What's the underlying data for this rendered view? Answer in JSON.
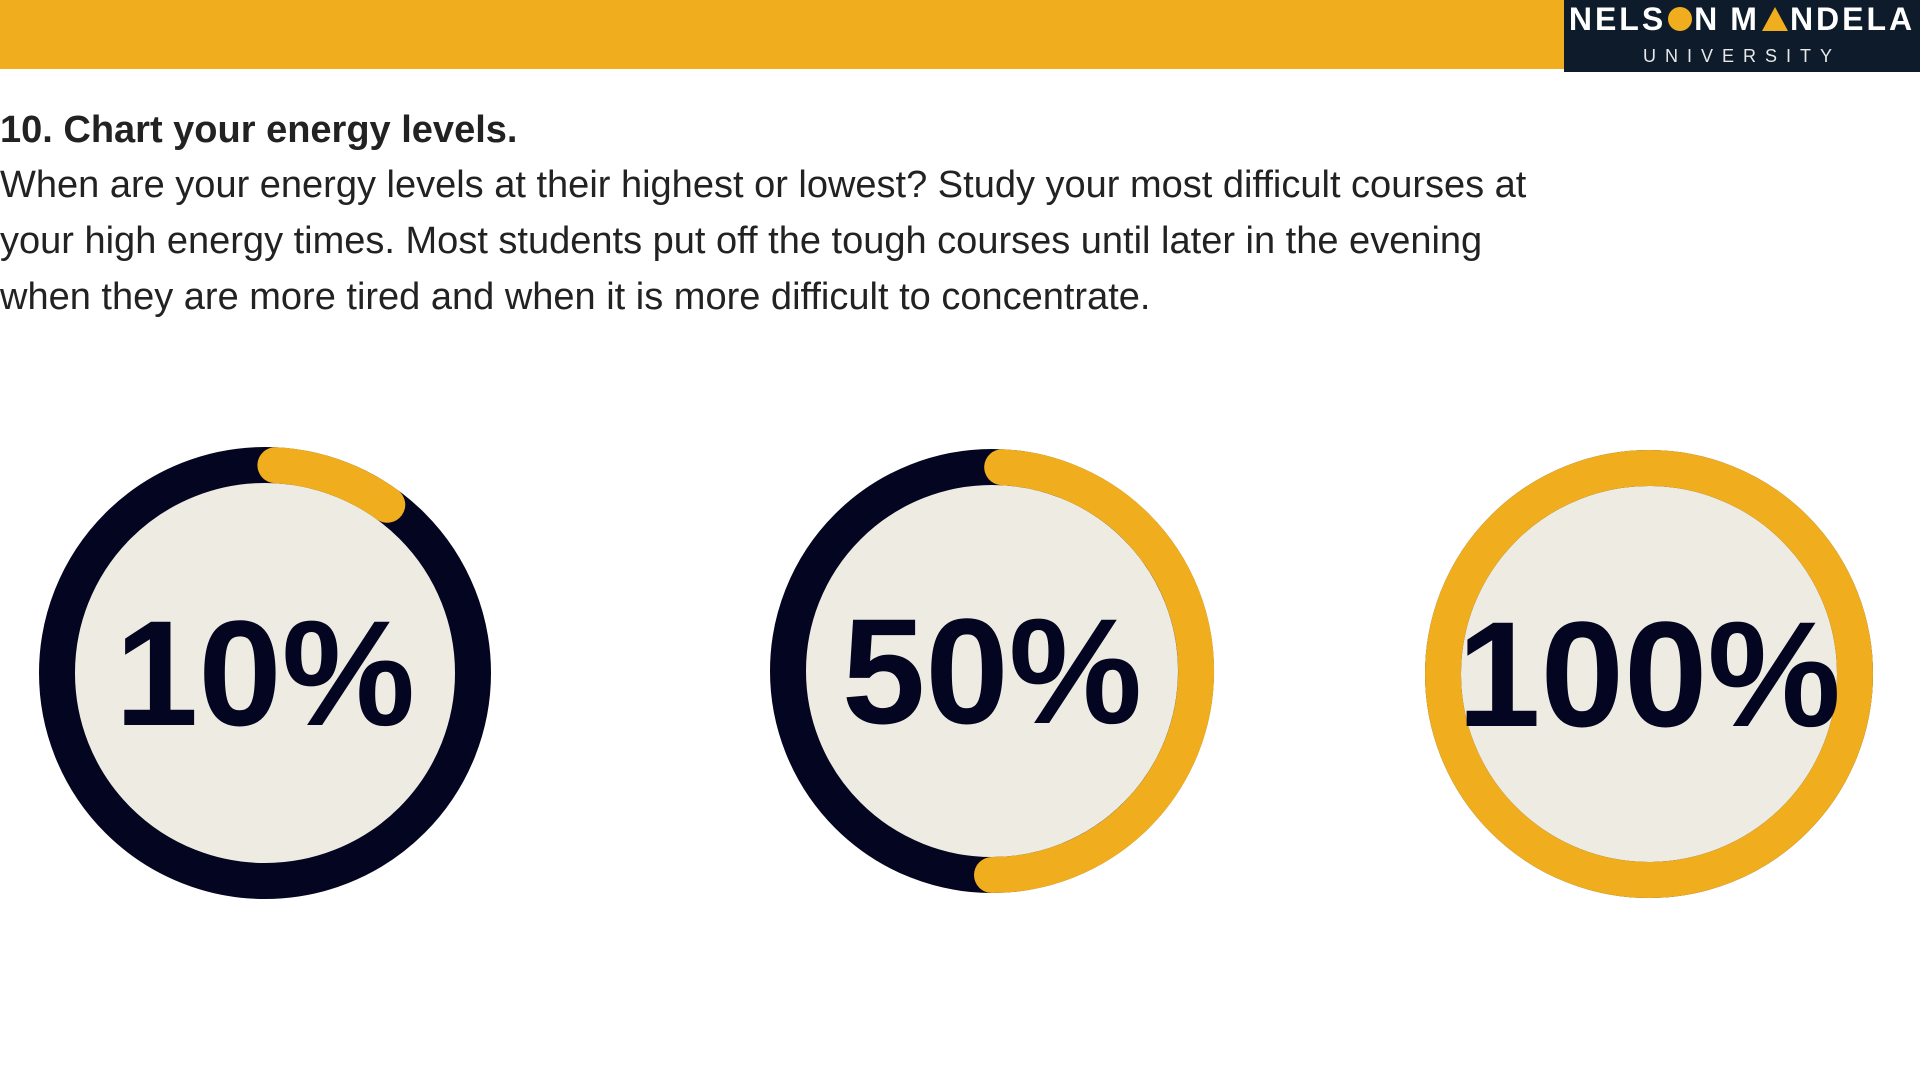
{
  "logo": {
    "part1": "NELS",
    "part2": "N",
    "part3": "M",
    "part4": "NDELA",
    "subtitle": "UNIVERSITY"
  },
  "heading": "10. Chart your energy levels.",
  "body_lines": [
    "When are your energy levels at their highest or lowest? Study your most difficult courses at",
    "your high energy times. Most students put off the tough courses until later in the evening",
    "when they are more tired and when it is more difficult to concentrate."
  ],
  "colors": {
    "accent": "#f0ae1f",
    "dark": "#040520",
    "gauge_fill": "#eeece2",
    "logo_bg": "#0d1b2a"
  },
  "gauges": [
    {
      "label": "10%",
      "level": 0.1
    },
    {
      "label": "50%",
      "level": 0.5
    },
    {
      "label": "100%",
      "level": 1.0
    }
  ]
}
